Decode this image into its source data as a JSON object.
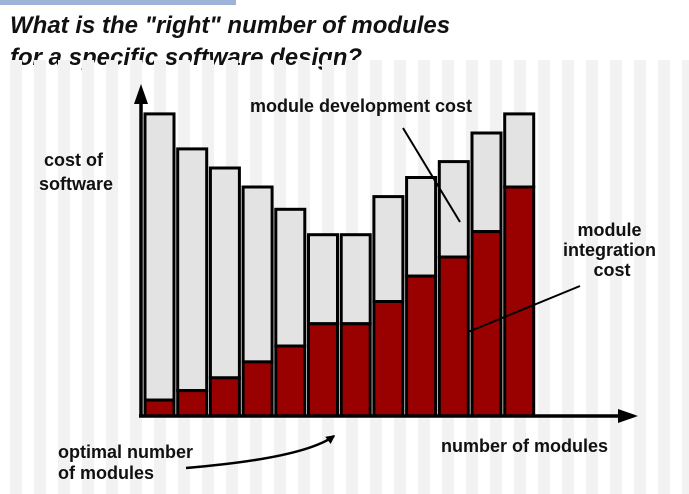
{
  "title_lines": [
    "What is the \"right\" number of modules",
    "for a specific software design?"
  ],
  "chart_data": {
    "type": "bar",
    "stacked": true,
    "categories": [
      "",
      "",
      "",
      "",
      "",
      "",
      "",
      "",
      "",
      "",
      "",
      ""
    ],
    "series": [
      {
        "name": "module integration cost",
        "color": "#990000",
        "values": [
          5,
          8,
          12,
          17,
          22,
          29,
          29,
          36,
          44,
          50,
          58,
          72
        ]
      },
      {
        "name": "module development cost",
        "color": "#e3e3e3",
        "values": [
          90,
          76,
          66,
          55,
          43,
          28,
          28,
          33,
          31,
          30,
          31,
          23
        ]
      }
    ],
    "ylabel": [
      "cost of",
      "software"
    ],
    "xlabel": "number of modules",
    "ylim": [
      0,
      100
    ],
    "grid": false,
    "annotations": {
      "development": "module development cost",
      "integration": [
        "module",
        "integration",
        "cost"
      ],
      "optimal": [
        "optimal number",
        "of modules"
      ]
    }
  },
  "colors": {
    "background_stripe": "#f2f2f2",
    "stroke": "#000000",
    "accent_strip": "#9fb3d9"
  }
}
